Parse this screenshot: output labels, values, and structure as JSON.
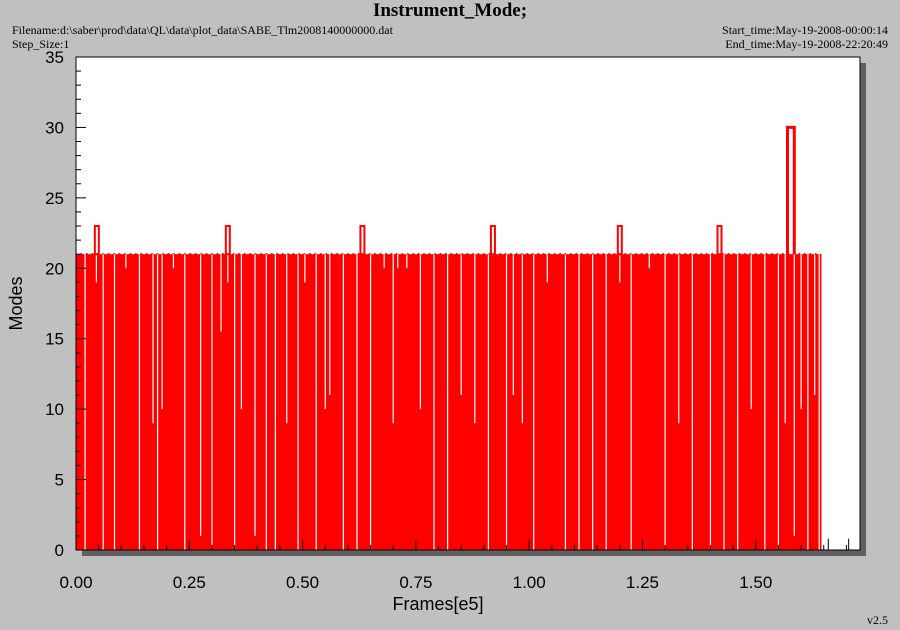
{
  "header": {
    "title": "Instrument_Mode;",
    "filename": "Filename:d:\\saber\\prod\\data\\QL\\data\\plot_data\\SABE_Tlm2008140000000.dat",
    "step_size": "Step_Size:1",
    "start_time": "Start_time:May-19-2008-00:00:14",
    "end_time": "End_time:May-19-2008-22:20:49",
    "version": "v2.5"
  },
  "colors": {
    "background": "#c0c0c0",
    "plot_area": "#ffffff",
    "shadow": "#606060",
    "series": "#ff0000"
  },
  "chart_data": {
    "type": "line",
    "title": "Instrument_Mode;",
    "xlabel": "Frames[e5]",
    "ylabel": "Modes",
    "xlim": [
      0.0,
      1.73
    ],
    "ylim": [
      0,
      35
    ],
    "x_ticks": [
      "0.00",
      "0.25",
      "0.50",
      "0.75",
      "1.00",
      "1.25",
      "1.50"
    ],
    "y_ticks": [
      "0",
      "5",
      "10",
      "15",
      "20",
      "25",
      "30",
      "35"
    ],
    "grid": false,
    "series": [
      {
        "name": "",
        "baseline_mode": 21,
        "x_range": [
          0.0,
          1.645
        ],
        "spikes_to_23": [
          0.046,
          0.335,
          0.632,
          0.92,
          1.2,
          1.42
        ],
        "spike_to_30": [
          1.57,
          1.585
        ],
        "dips": [
          {
            "x": 0.02,
            "y": 0
          },
          {
            "x": 0.045,
            "y": 19
          },
          {
            "x": 0.06,
            "y": 0
          },
          {
            "x": 0.085,
            "y": 0
          },
          {
            "x": 0.11,
            "y": 20
          },
          {
            "x": 0.14,
            "y": 0
          },
          {
            "x": 0.17,
            "y": 9
          },
          {
            "x": 0.18,
            "y": 0
          },
          {
            "x": 0.19,
            "y": 10
          },
          {
            "x": 0.215,
            "y": 20
          },
          {
            "x": 0.24,
            "y": 0
          },
          {
            "x": 0.275,
            "y": 1
          },
          {
            "x": 0.3,
            "y": 0
          },
          {
            "x": 0.32,
            "y": 15.5
          },
          {
            "x": 0.335,
            "y": 19
          },
          {
            "x": 0.35,
            "y": 0
          },
          {
            "x": 0.365,
            "y": 10
          },
          {
            "x": 0.395,
            "y": 1
          },
          {
            "x": 0.42,
            "y": 0
          },
          {
            "x": 0.44,
            "y": 0
          },
          {
            "x": 0.465,
            "y": 9
          },
          {
            "x": 0.49,
            "y": 0
          },
          {
            "x": 0.505,
            "y": 19
          },
          {
            "x": 0.53,
            "y": 0
          },
          {
            "x": 0.55,
            "y": 10
          },
          {
            "x": 0.56,
            "y": 11
          },
          {
            "x": 0.59,
            "y": 0
          },
          {
            "x": 0.62,
            "y": 0
          },
          {
            "x": 0.65,
            "y": 0
          },
          {
            "x": 0.68,
            "y": 20
          },
          {
            "x": 0.7,
            "y": 9
          },
          {
            "x": 0.71,
            "y": 20
          },
          {
            "x": 0.73,
            "y": 20
          },
          {
            "x": 0.76,
            "y": 10
          },
          {
            "x": 0.79,
            "y": 0
          },
          {
            "x": 0.82,
            "y": 0
          },
          {
            "x": 0.85,
            "y": 11
          },
          {
            "x": 0.88,
            "y": 9
          },
          {
            "x": 0.91,
            "y": 0
          },
          {
            "x": 0.95,
            "y": 0
          },
          {
            "x": 0.965,
            "y": 11
          },
          {
            "x": 0.985,
            "y": 9
          },
          {
            "x": 1.01,
            "y": 0
          },
          {
            "x": 1.04,
            "y": 19
          },
          {
            "x": 1.08,
            "y": 0
          },
          {
            "x": 1.11,
            "y": 0
          },
          {
            "x": 1.14,
            "y": 0
          },
          {
            "x": 1.17,
            "y": 0
          },
          {
            "x": 1.2,
            "y": 19
          },
          {
            "x": 1.225,
            "y": 0
          },
          {
            "x": 1.265,
            "y": 20
          },
          {
            "x": 1.3,
            "y": 0
          },
          {
            "x": 1.33,
            "y": 9
          },
          {
            "x": 1.36,
            "y": 0
          },
          {
            "x": 1.4,
            "y": 0
          },
          {
            "x": 1.43,
            "y": 0
          },
          {
            "x": 1.46,
            "y": 0
          },
          {
            "x": 1.49,
            "y": 10
          },
          {
            "x": 1.52,
            "y": 0
          },
          {
            "x": 1.55,
            "y": 0
          },
          {
            "x": 1.565,
            "y": 9
          },
          {
            "x": 1.585,
            "y": 1
          },
          {
            "x": 1.6,
            "y": 10
          },
          {
            "x": 1.615,
            "y": 0
          },
          {
            "x": 1.63,
            "y": 11
          },
          {
            "x": 1.64,
            "y": 0
          }
        ],
        "isolated_points": [
          {
            "x": 1.66,
            "y": 0.8
          },
          {
            "x": 1.705,
            "y": 0.8
          }
        ]
      }
    ]
  }
}
